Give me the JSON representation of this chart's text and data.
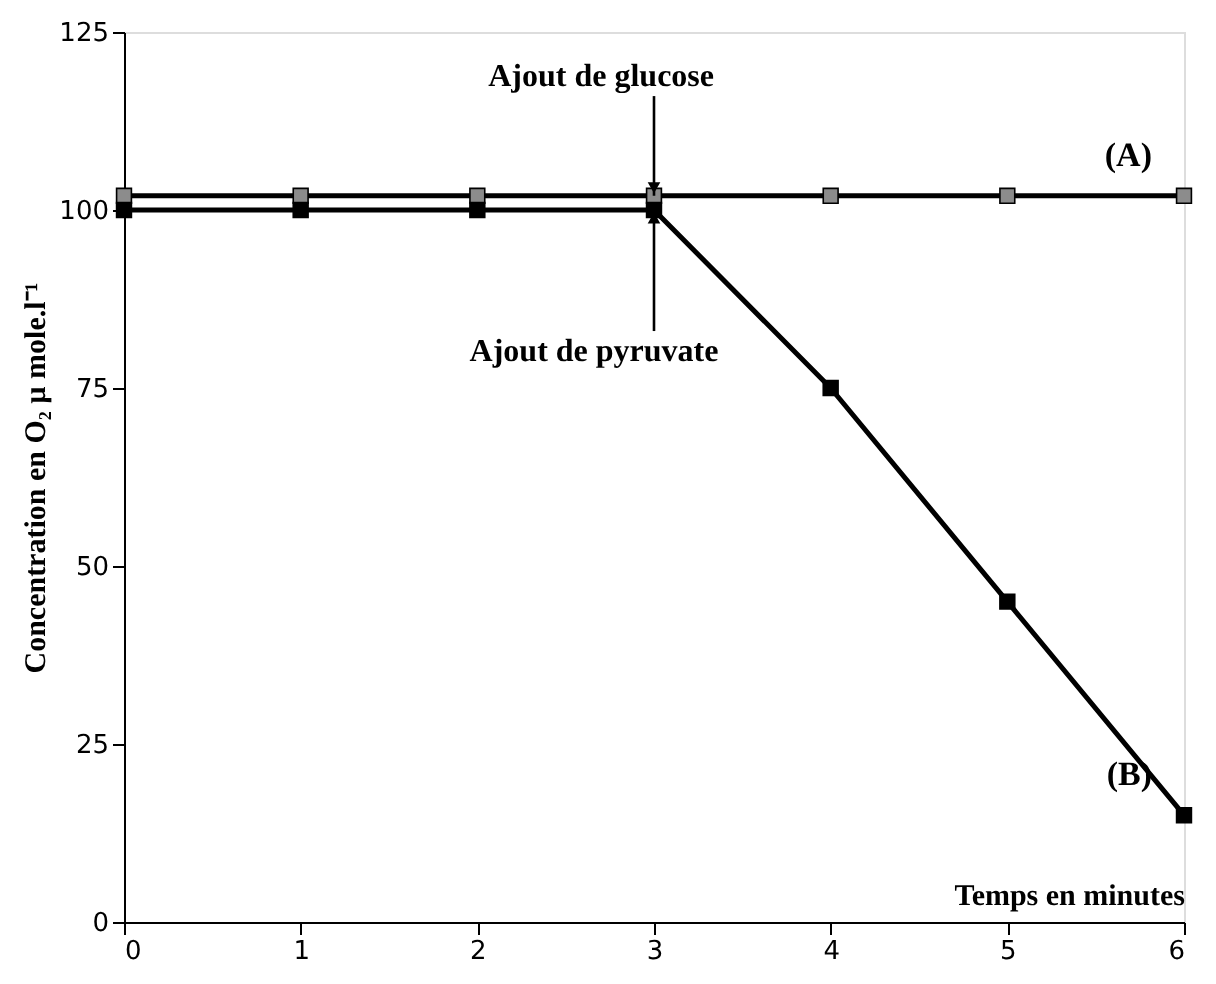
{
  "chart_data": {
    "type": "line",
    "x": [
      0,
      1,
      2,
      3,
      4,
      5,
      6
    ],
    "series": [
      {
        "name": "(A)",
        "color": "#8c8c8c",
        "values": [
          102,
          102,
          102,
          102,
          102,
          102,
          102
        ]
      },
      {
        "name": "(B)",
        "color": "#000000",
        "values": [
          100,
          100,
          100,
          100,
          75,
          45,
          15
        ]
      }
    ],
    "xlabel": "Temps en minutes",
    "ylabel": "Concentration en O₂ µ mole.l⁻¹",
    "xlim": [
      0,
      6
    ],
    "xticks": [
      0,
      1,
      2,
      3,
      4,
      5,
      6
    ],
    "ylim": [
      0,
      125
    ],
    "yticks": [
      0,
      25,
      50,
      75,
      100,
      125
    ],
    "annotations": [
      {
        "text": "Ajout de glucose",
        "x": 3,
        "y": 102
      },
      {
        "text": "Ajout de pyruvate",
        "x": 3,
        "y": 100
      }
    ],
    "marker": "square",
    "grid": false
  }
}
